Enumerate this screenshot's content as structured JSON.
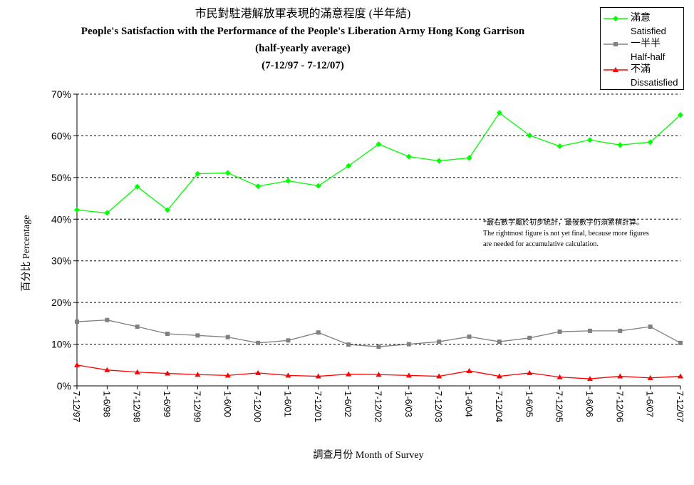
{
  "chart_data": {
    "type": "line",
    "title_zh": "市民對駐港解放軍表現的滿意程度 (半年結)",
    "title_en": "People's Satisfaction with the Performance of the People's Liberation Army Hong Kong Garrison",
    "subtitle": "(half-yearly average)",
    "period": "(7-12/97 - 7-12/07)",
    "ylabel": "百分比 Percentage",
    "xlabel": "調查月份 Month of Survey",
    "ylim": [
      0,
      70
    ],
    "yticks": [
      "0%",
      "10%",
      "20%",
      "30%",
      "40%",
      "50%",
      "60%",
      "70%"
    ],
    "grid": true,
    "legend_position": "top-right",
    "categories": [
      "7-12/97",
      "1-6/98",
      "7-12/98",
      "1-6/99",
      "7-12/99",
      "1-6/00",
      "7-12/00",
      "1-6/01",
      "7-12/01",
      "1-6/02",
      "7-12/02",
      "1-6/03",
      "7-12/03",
      "1-6/04",
      "7-12/04",
      "1-6/05",
      "7-12/05",
      "1-6/06",
      "7-12/06",
      "1-6/07",
      "7-12/07"
    ],
    "series": [
      {
        "name_zh": "滿意",
        "name_en": "Satisfied",
        "color": "#00ff00",
        "marker": "diamond",
        "values": [
          42.2,
          41.5,
          47.8,
          42.2,
          50.9,
          51.1,
          47.9,
          49.2,
          48.0,
          52.8,
          58.0,
          55.0,
          54.0,
          54.7,
          65.5,
          60.1,
          57.5,
          59.0,
          57.8,
          58.5,
          65.0
        ]
      },
      {
        "name_zh": "一半半",
        "name_en": "Half-half",
        "color": "#808080",
        "marker": "square",
        "values": [
          15.4,
          15.8,
          14.2,
          12.5,
          12.1,
          11.7,
          10.3,
          10.9,
          12.8,
          9.9,
          9.4,
          10.0,
          10.6,
          11.8,
          10.6,
          11.5,
          13.0,
          13.2,
          13.2,
          14.2,
          10.3
        ]
      },
      {
        "name_zh": "不滿",
        "name_en": "Dissatisfied",
        "color": "#ff0000",
        "marker": "triangle",
        "values": [
          5.0,
          3.8,
          3.3,
          3.0,
          2.7,
          2.5,
          3.1,
          2.5,
          2.3,
          2.8,
          2.7,
          2.5,
          2.3,
          3.6,
          2.3,
          3.1,
          2.1,
          1.7,
          2.3,
          1.9,
          2.3
        ]
      }
    ],
    "note_zh": "*最右數字屬於初步統計，最後數字仍須累積計算。",
    "note_en_1": "The rightmost figure is not yet final, because more figures",
    "note_en_2": "are needed for accumulative calculation."
  }
}
